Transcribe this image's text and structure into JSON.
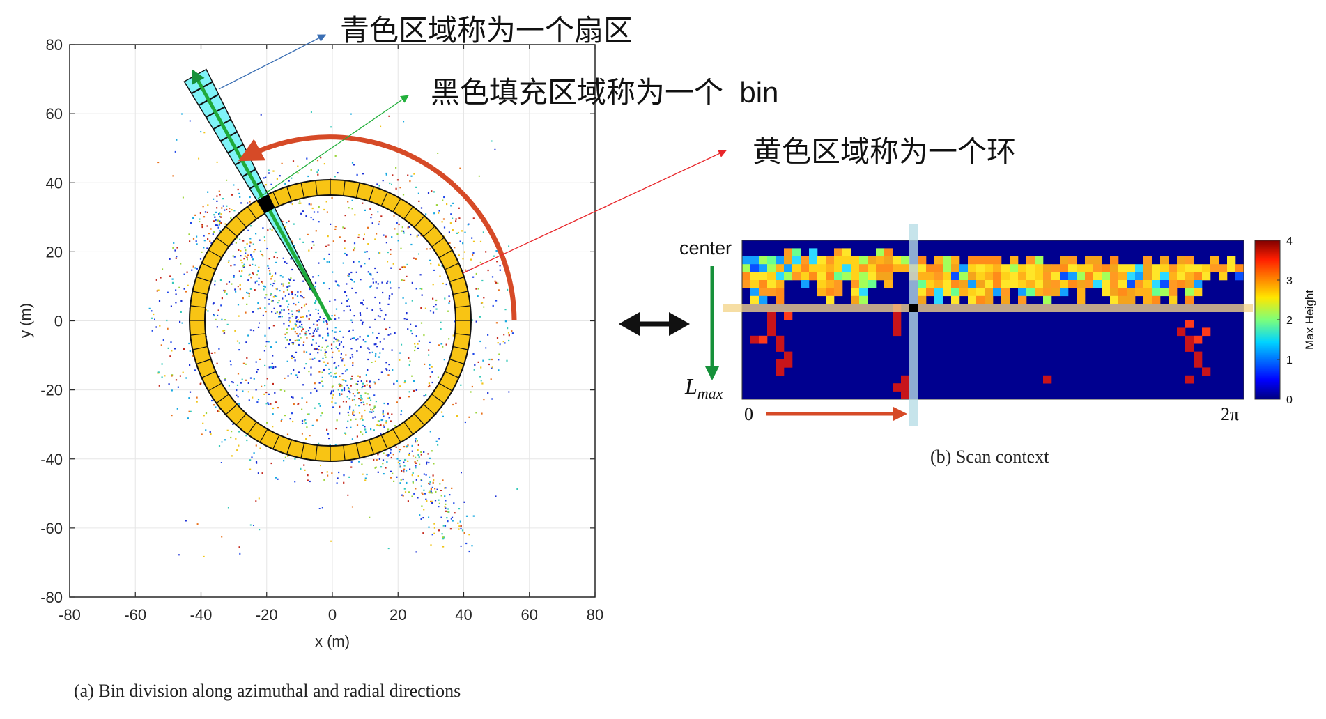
{
  "annotations": {
    "sector_label": "青色区域称为一个扇区",
    "bin_label": "黑色填充区域称为一个  bin",
    "ring_label": "黄色区域称为一个环"
  },
  "plot_a": {
    "ylabel": "y (m)",
    "xlabel": "x (m)",
    "yticks": [
      "80",
      "60",
      "40",
      "20",
      "0",
      "-20",
      "-40",
      "-60",
      "-80"
    ],
    "xticks": [
      "-80",
      "-60",
      "-40",
      "-20",
      "0",
      "20",
      "40",
      "60",
      "80"
    ],
    "caption": "(a)  Bin division along azimuthal and radial directions"
  },
  "plot_b": {
    "center_label": "center",
    "lmax_label": "L",
    "lmax_sub": "max",
    "x_start": "0",
    "x_end": "2π",
    "colorbar_label": "Max Height",
    "colorbar_ticks": [
      "4",
      "3",
      "2",
      "1",
      "0"
    ],
    "caption": "(b)  Scan context"
  },
  "colors": {
    "sector_fill": "#7ff3f8",
    "ring_fill": "#f8c414",
    "arc_red": "#d64a27",
    "arrow_blue": "#3b6fb4",
    "arrow_green": "#23b03c",
    "arrow_red": "#e8262a"
  }
}
